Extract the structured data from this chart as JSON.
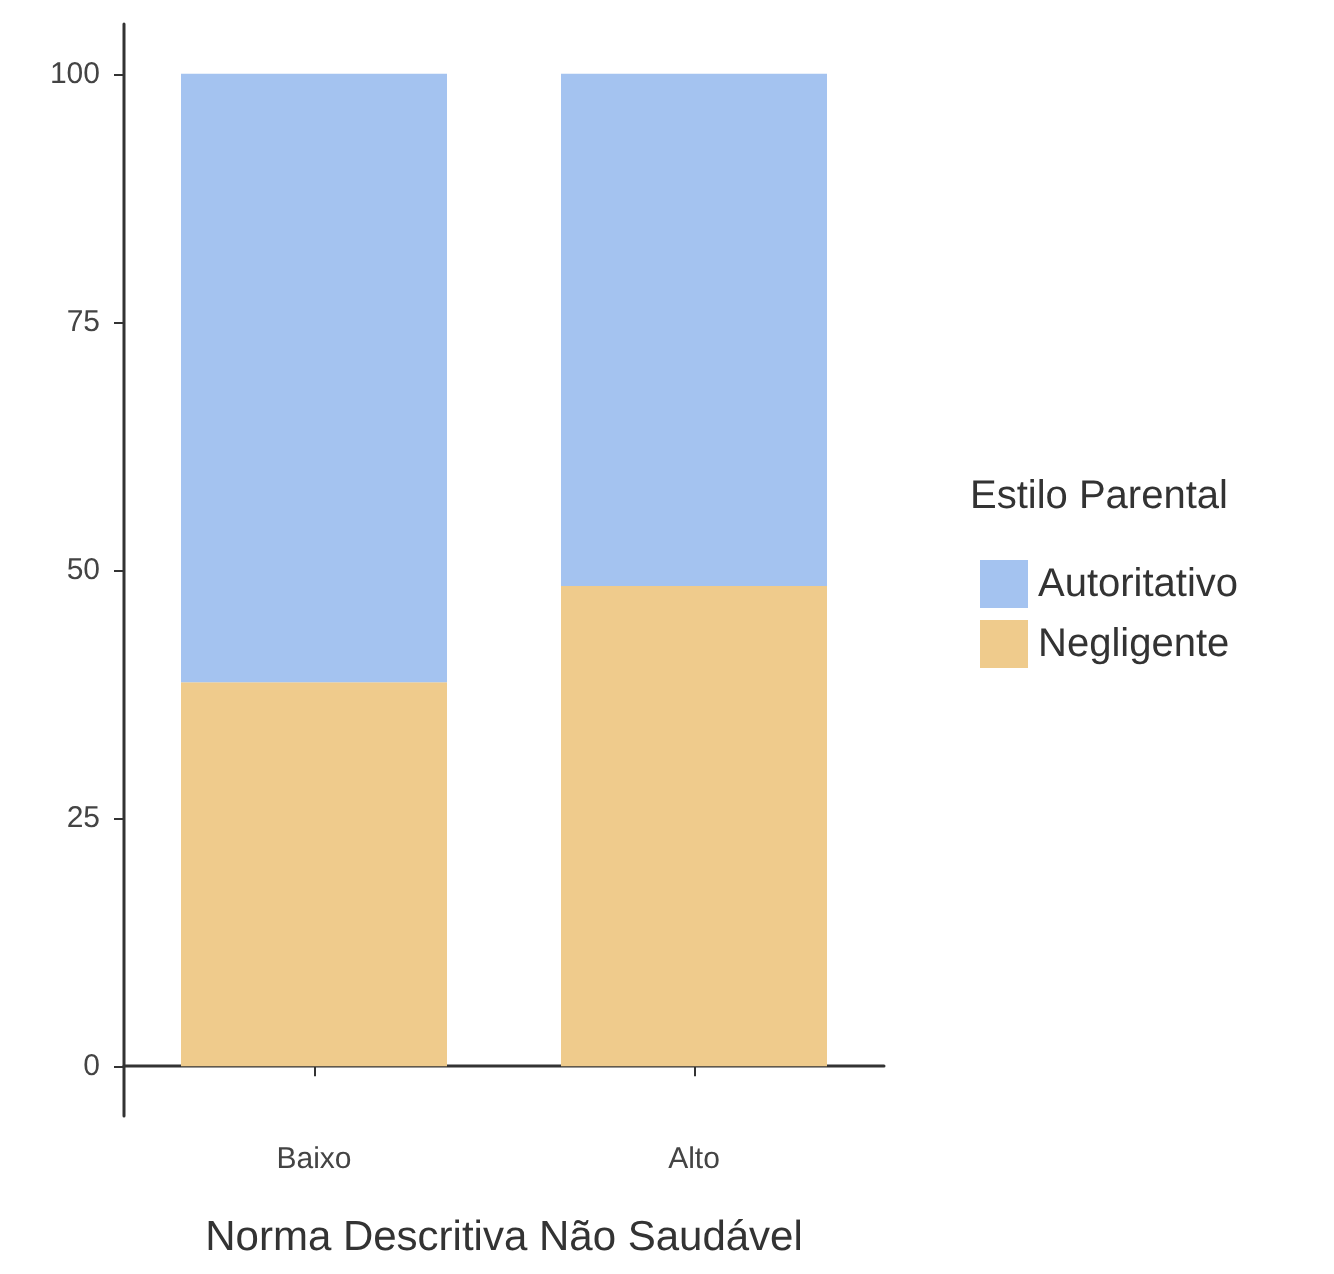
{
  "chart_data": {
    "type": "bar",
    "stacked": true,
    "xlabel": "Norma Descritiva Não Saudável",
    "legend_title": "Estilo Parental",
    "legend": "right",
    "grid": false,
    "categories": [
      "Baixo",
      "Alto"
    ],
    "series": [
      {
        "name": "Negligente",
        "color": "#efcb8c",
        "values": [
          38.7,
          48.4
        ]
      },
      {
        "name": "Autoritativo",
        "color": "#a4c3f0",
        "values": [
          61.3,
          51.6
        ]
      }
    ],
    "ylim": [
      -5,
      105
    ],
    "yticks": [
      0,
      25,
      50,
      75,
      100
    ]
  }
}
